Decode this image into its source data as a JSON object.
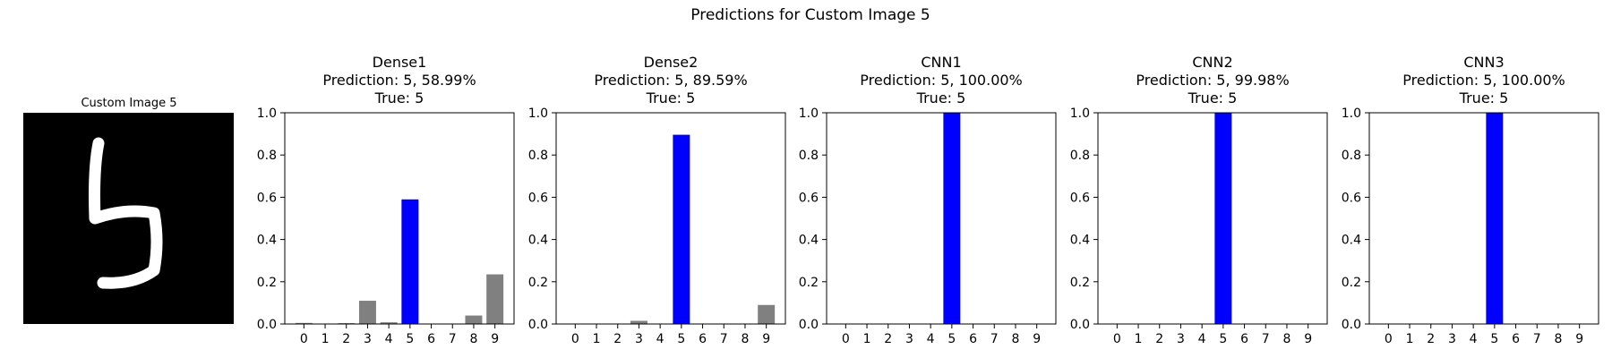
{
  "figure": {
    "suptitle": "Predictions for Custom Image 5"
  },
  "image_panel": {
    "title": "Custom Image 5",
    "digit": "5",
    "background": "#000000",
    "stroke_color": "#ffffff"
  },
  "colors": {
    "predicted_bar": "#0000ff",
    "other_bar": "#808080"
  },
  "chart_data": [
    {
      "type": "bar",
      "title": "Dense1\nPrediction: 5, 58.99%\nTrue: 5",
      "title_lines": [
        "Dense1",
        "Prediction: 5, 58.99%",
        "True: 5"
      ],
      "categories": [
        "0",
        "1",
        "2",
        "3",
        "4",
        "5",
        "6",
        "7",
        "8",
        "9"
      ],
      "values": [
        0.005,
        0.002,
        0.004,
        0.11,
        0.008,
        0.5899,
        0.002,
        0.002,
        0.04,
        0.235
      ],
      "highlight_index": 5,
      "ylim": [
        0,
        1
      ],
      "yticks": [
        "0.0",
        "0.2",
        "0.4",
        "0.6",
        "0.8",
        "1.0"
      ],
      "grid": false
    },
    {
      "type": "bar",
      "title": "Dense2\nPrediction: 5, 89.59%\nTrue: 5",
      "title_lines": [
        "Dense2",
        "Prediction: 5, 89.59%",
        "True: 5"
      ],
      "categories": [
        "0",
        "1",
        "2",
        "3",
        "4",
        "5",
        "6",
        "7",
        "8",
        "9"
      ],
      "values": [
        0.001,
        0.001,
        0.002,
        0.015,
        0.002,
        0.8959,
        0.001,
        0.001,
        0.002,
        0.09
      ],
      "highlight_index": 5,
      "ylim": [
        0,
        1
      ],
      "yticks": [
        "0.0",
        "0.2",
        "0.4",
        "0.6",
        "0.8",
        "1.0"
      ],
      "grid": false
    },
    {
      "type": "bar",
      "title": "CNN1\nPrediction: 5, 100.00%\nTrue: 5",
      "title_lines": [
        "CNN1",
        "Prediction: 5, 100.00%",
        "True: 5"
      ],
      "categories": [
        "0",
        "1",
        "2",
        "3",
        "4",
        "5",
        "6",
        "7",
        "8",
        "9"
      ],
      "values": [
        0,
        0,
        0,
        0,
        0,
        1.0,
        0,
        0,
        0,
        0
      ],
      "highlight_index": 5,
      "ylim": [
        0,
        1
      ],
      "yticks": [
        "0.0",
        "0.2",
        "0.4",
        "0.6",
        "0.8",
        "1.0"
      ],
      "grid": false
    },
    {
      "type": "bar",
      "title": "CNN2\nPrediction: 5, 99.98%\nTrue: 5",
      "title_lines": [
        "CNN2",
        "Prediction: 5, 99.98%",
        "True: 5"
      ],
      "categories": [
        "0",
        "1",
        "2",
        "3",
        "4",
        "5",
        "6",
        "7",
        "8",
        "9"
      ],
      "values": [
        0,
        0,
        0,
        0,
        0,
        0.9998,
        0,
        0,
        0,
        0
      ],
      "highlight_index": 5,
      "ylim": [
        0,
        1
      ],
      "yticks": [
        "0.0",
        "0.2",
        "0.4",
        "0.6",
        "0.8",
        "1.0"
      ],
      "grid": false
    },
    {
      "type": "bar",
      "title": "CNN3\nPrediction: 5, 100.00%\nTrue: 5",
      "title_lines": [
        "CNN3",
        "Prediction: 5, 100.00%",
        "True: 5"
      ],
      "categories": [
        "0",
        "1",
        "2",
        "3",
        "4",
        "5",
        "6",
        "7",
        "8",
        "9"
      ],
      "values": [
        0,
        0,
        0,
        0,
        0,
        1.0,
        0,
        0,
        0,
        0
      ],
      "highlight_index": 5,
      "ylim": [
        0,
        1
      ],
      "yticks": [
        "0.0",
        "0.2",
        "0.4",
        "0.6",
        "0.8",
        "1.0"
      ],
      "grid": false
    }
  ]
}
